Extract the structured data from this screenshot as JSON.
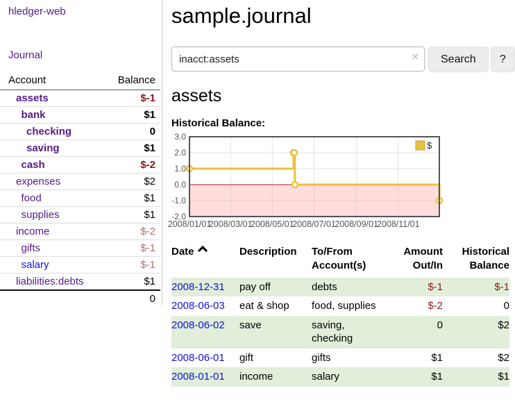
{
  "colors": {
    "link_purple": "#551a8b",
    "link_blue": "#1212dd",
    "negative_strong": "#8b1616",
    "negative_muted": "#b76c6c",
    "row_stripe_green": "#e0eeda",
    "chart_gold": "#e8c240",
    "chart_zero_line": "#992017",
    "chart_border": "#545454",
    "chart_negative_fill": "rgba(255,150,150,0.32)"
  },
  "app": {
    "title": "hledger-web",
    "nav": {
      "journal": "Journal"
    }
  },
  "sidebar": {
    "table": {
      "headers": [
        "Account",
        "Balance"
      ],
      "rows": [
        {
          "account": "assets",
          "balance": "$-1",
          "indent": 0,
          "bold": true
        },
        {
          "account": "bank",
          "balance": "$1",
          "indent": 1,
          "bold": true
        },
        {
          "account": "checking",
          "balance": "0",
          "indent": 2,
          "bold": true
        },
        {
          "account": "saving",
          "balance": "$1",
          "indent": 2,
          "bold": true
        },
        {
          "account": "cash",
          "balance": "$-2",
          "indent": 1,
          "bold": true
        },
        {
          "account": "expenses",
          "balance": "$2",
          "indent": 0,
          "bold": false
        },
        {
          "account": "food",
          "balance": "$1",
          "indent": 1,
          "bold": false
        },
        {
          "account": "supplies",
          "balance": "$1",
          "indent": 1,
          "bold": false
        },
        {
          "account": "income",
          "balance": "$-2",
          "indent": 0,
          "bold": false
        },
        {
          "account": "gifts",
          "balance": "$-1",
          "indent": 1,
          "bold": false
        },
        {
          "account": "salary",
          "balance": "$-1",
          "indent": 1,
          "bold": false,
          "unvisited": true
        },
        {
          "account": "liabilities:debts",
          "balance": "$1",
          "indent": 0,
          "bold": false
        }
      ],
      "total": "0"
    }
  },
  "main": {
    "title": "sample.journal",
    "search": {
      "value": "inacct:assets",
      "clear_icon": "×",
      "button_label": "Search",
      "help_label": "?"
    },
    "account_heading": "assets",
    "chart": {
      "label": "Historical Balance:",
      "chart_data": {
        "type": "line",
        "step": true,
        "series": [
          {
            "name": "$",
            "color": "#e8c240",
            "points": [
              {
                "date": "2008/01/01",
                "day": 0,
                "y": 1
              },
              {
                "date": "2008/06/01",
                "day": 152,
                "y": 2
              },
              {
                "date": "2008/06/02",
                "day": 153,
                "y": 2
              },
              {
                "date": "2008/06/03",
                "day": 154,
                "y": 0
              },
              {
                "date": "2008/12/31",
                "day": 365,
                "y": -1
              }
            ]
          }
        ],
        "ylim": [
          -2,
          3
        ],
        "yticks": [
          {
            "label": "3.0",
            "v": 3
          },
          {
            "label": "2.0",
            "v": 2
          },
          {
            "label": "1.0",
            "v": 1
          },
          {
            "label": "0.0",
            "v": 0
          },
          {
            "label": "-1.0",
            "v": -1
          },
          {
            "label": "-2.0",
            "v": -2
          }
        ],
        "xlim_days": [
          0,
          365
        ],
        "xticks": [
          {
            "label": "2008/01/01",
            "day": 0
          },
          {
            "label": "2008/03/01",
            "day": 60
          },
          {
            "label": "2008/05/01",
            "day": 121
          },
          {
            "label": "2008/07/01",
            "day": 182
          },
          {
            "label": "2008/09/01",
            "day": 244
          },
          {
            "label": "2008/11/01",
            "day": 305
          }
        ],
        "grid": true,
        "negative_region_shaded": true,
        "legend": {
          "label": "$",
          "position": "top-right"
        }
      }
    },
    "register": {
      "headers": [
        "Date",
        "Description",
        "To/From Account(s)",
        "Amount Out/In",
        "Historical Balance"
      ],
      "date_sort_icon": "chevron-up",
      "rows": [
        {
          "date": "2008-12-31",
          "description": "pay off",
          "accounts": "debts",
          "amount": "$-1",
          "balance": "$-1"
        },
        {
          "date": "2008-06-03",
          "description": "eat & shop",
          "accounts": "food, supplies",
          "amount": "$-2",
          "balance": "0"
        },
        {
          "date": "2008-06-02",
          "description": "save",
          "accounts": "saving, checking",
          "amount": "0",
          "balance": "$2"
        },
        {
          "date": "2008-06-01",
          "description": "gift",
          "accounts": "gifts",
          "amount": "$1",
          "balance": "$2"
        },
        {
          "date": "2008-01-01",
          "description": "income",
          "accounts": "salary",
          "amount": "$1",
          "balance": "$1"
        }
      ]
    }
  }
}
